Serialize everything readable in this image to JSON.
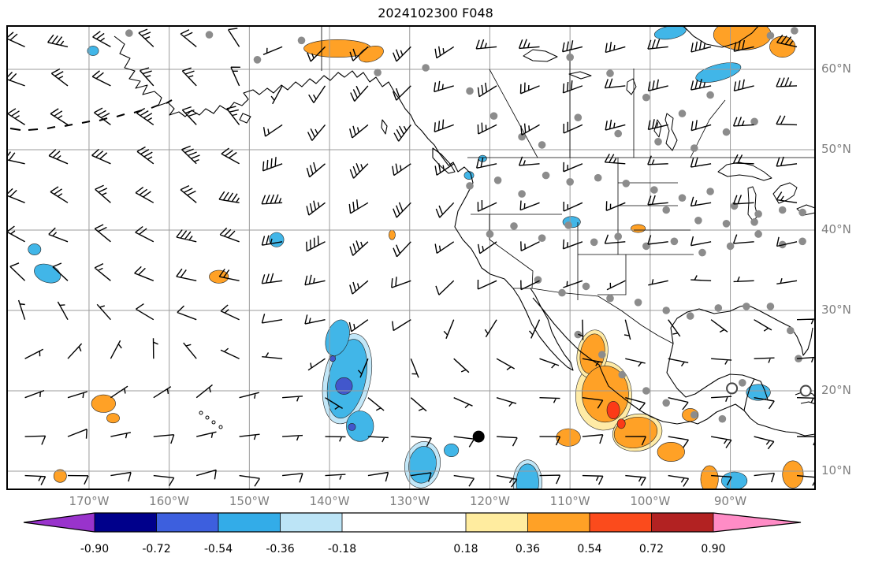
{
  "title": "2024102300 F048",
  "axes": {
    "lon_labels": [
      "170°W",
      "160°W",
      "150°W",
      "140°W",
      "130°W",
      "120°W",
      "110°W",
      "100°W",
      "90°W"
    ],
    "lat_labels": [
      "60°N",
      "50°N",
      "40°N",
      "30°N",
      "20°N",
      "10°N"
    ],
    "label_color": "#7f7f7f"
  },
  "colorbar": {
    "tick_labels": [
      "-0.90",
      "-0.72",
      "-0.54",
      "-0.36",
      "-0.18",
      "0.18",
      "0.36",
      "0.54",
      "0.72",
      "0.90"
    ],
    "colors": [
      "#9933CC",
      "#00008B",
      "#3D5FDE",
      "#33ACE8",
      "#BCE4F6",
      "#FFFFFF",
      "#FFEC9F",
      "#FFA126",
      "#FB4B1C",
      "#B22222",
      "#FF8CC6"
    ]
  },
  "palette": {
    "shade_cyan": "#41B6E8",
    "shade_lightcyan": "#C2E7F8",
    "shade_blue": "#4257CC",
    "shade_yellow": "#FFEBA6",
    "shade_orange": "#FFA126",
    "shade_red": "#FC3A17",
    "station_dot": "#8C8C8C",
    "gridline": "#9B9B9B",
    "coast": "#000000",
    "barb": "#000000"
  },
  "chart_data": {
    "type": "heatmap",
    "subtype": "wind-barb weather map with shaded anomaly contours and station dots",
    "title": "2024102300 F048",
    "x_ticks_lon_w": [
      170,
      160,
      150,
      140,
      130,
      120,
      110,
      100,
      90
    ],
    "y_ticks_lat_n": [
      60,
      50,
      40,
      30,
      20,
      10
    ],
    "lon_w_range": [
      180.3,
      79.4
    ],
    "lat_n_range": [
      7.6,
      65.5
    ],
    "colorbar_levels": [
      -0.9,
      -0.72,
      -0.54,
      -0.36,
      -0.18,
      0.18,
      0.36,
      0.54,
      0.72,
      0.9
    ],
    "shaded_regions": [
      {
        "lon": 137.8,
        "lat": 21.5,
        "rx": 2.9,
        "ry": 5.7,
        "rot": 12,
        "c": "lightcyan"
      },
      {
        "lon": 128.4,
        "lat": 10.8,
        "rx": 2.2,
        "ry": 2.9,
        "rot": 10,
        "c": "lightcyan"
      },
      {
        "lon": 115.3,
        "lat": 8.6,
        "rx": 1.8,
        "ry": 2.8,
        "rot": 0,
        "c": "lightcyan"
      },
      {
        "lon": 105.8,
        "lat": 19.4,
        "rx": 3.5,
        "ry": 4.3,
        "rot": 0,
        "c": "yellow"
      },
      {
        "lon": 107.2,
        "lat": 24.6,
        "rx": 1.9,
        "ry": 3.0,
        "rot": 10,
        "c": "yellow"
      },
      {
        "lon": 101.6,
        "lat": 14.8,
        "rx": 3.1,
        "ry": 2.3,
        "rot": -10,
        "c": "yellow"
      },
      {
        "lon": 139.0,
        "lat": 62.6,
        "rx": 4.2,
        "ry": 1.1,
        "rot": 0,
        "c": "orange"
      },
      {
        "lon": 134.8,
        "lat": 61.9,
        "rx": 1.6,
        "ry": 0.9,
        "rot": -20,
        "c": "orange"
      },
      {
        "lon": 88.5,
        "lat": 64.3,
        "rx": 3.6,
        "ry": 1.9,
        "rot": 0,
        "c": "orange"
      },
      {
        "lon": 83.5,
        "lat": 62.8,
        "rx": 1.6,
        "ry": 1.3,
        "rot": 0,
        "c": "orange"
      },
      {
        "lon": 97.5,
        "lat": 64.6,
        "rx": 2.0,
        "ry": 0.8,
        "rot": -10,
        "c": "cyan"
      },
      {
        "lon": 91.5,
        "lat": 59.6,
        "rx": 2.9,
        "ry": 1.0,
        "rot": -15,
        "c": "cyan"
      },
      {
        "lon": 169.5,
        "lat": 62.3,
        "rx": 0.7,
        "ry": 0.6,
        "rot": 0,
        "c": "cyan"
      },
      {
        "lon": 176.8,
        "lat": 37.6,
        "rx": 0.8,
        "ry": 0.7,
        "rot": 0,
        "c": "cyan"
      },
      {
        "lon": 175.2,
        "lat": 34.6,
        "rx": 1.7,
        "ry": 1.1,
        "rot": 20,
        "c": "cyan"
      },
      {
        "lon": 153.8,
        "lat": 34.2,
        "rx": 1.2,
        "ry": 0.8,
        "rot": 0,
        "c": "orange"
      },
      {
        "lon": 146.6,
        "lat": 38.8,
        "rx": 0.9,
        "ry": 0.9,
        "rot": 0,
        "c": "cyan"
      },
      {
        "lon": 137.8,
        "lat": 21.5,
        "rx": 2.3,
        "ry": 5.0,
        "rot": 12,
        "c": "cyan"
      },
      {
        "lon": 139.0,
        "lat": 26.6,
        "rx": 1.4,
        "ry": 2.3,
        "rot": 18,
        "c": "cyan"
      },
      {
        "lon": 136.2,
        "lat": 15.6,
        "rx": 1.7,
        "ry": 1.9,
        "rot": 0,
        "c": "cyan"
      },
      {
        "lon": 128.4,
        "lat": 10.8,
        "rx": 1.7,
        "ry": 2.3,
        "rot": 10,
        "c": "cyan"
      },
      {
        "lon": 124.8,
        "lat": 12.6,
        "rx": 0.9,
        "ry": 0.8,
        "rot": 0,
        "c": "cyan"
      },
      {
        "lon": 115.3,
        "lat": 8.6,
        "rx": 1.4,
        "ry": 2.3,
        "rot": 0,
        "c": "cyan"
      },
      {
        "lon": 107.2,
        "lat": 24.6,
        "rx": 1.5,
        "ry": 2.5,
        "rot": 10,
        "c": "orange"
      },
      {
        "lon": 105.6,
        "lat": 19.6,
        "rx": 2.9,
        "ry": 3.5,
        "rot": 0,
        "c": "orange"
      },
      {
        "lon": 101.8,
        "lat": 14.8,
        "rx": 2.7,
        "ry": 1.9,
        "rot": -10,
        "c": "orange"
      },
      {
        "lon": 110.2,
        "lat": 14.2,
        "rx": 1.5,
        "ry": 1.1,
        "rot": 0,
        "c": "orange"
      },
      {
        "lon": 97.4,
        "lat": 12.4,
        "rx": 1.7,
        "ry": 1.2,
        "rot": 0,
        "c": "orange"
      },
      {
        "lon": 95.0,
        "lat": 17.0,
        "rx": 1.0,
        "ry": 0.8,
        "rot": 0,
        "c": "orange"
      },
      {
        "lon": 92.6,
        "lat": 9.0,
        "rx": 1.1,
        "ry": 1.7,
        "rot": 0,
        "c": "orange"
      },
      {
        "lon": 82.2,
        "lat": 9.6,
        "rx": 1.3,
        "ry": 1.7,
        "rot": 0,
        "c": "orange"
      },
      {
        "lon": 89.5,
        "lat": 8.8,
        "rx": 1.6,
        "ry": 1.1,
        "rot": 0,
        "c": "cyan"
      },
      {
        "lon": 86.5,
        "lat": 19.8,
        "rx": 1.5,
        "ry": 1.0,
        "rot": 0,
        "c": "cyan"
      },
      {
        "lon": 168.2,
        "lat": 18.4,
        "rx": 1.5,
        "ry": 1.1,
        "rot": 0,
        "c": "orange"
      },
      {
        "lon": 167.0,
        "lat": 16.6,
        "rx": 0.8,
        "ry": 0.6,
        "rot": 0,
        "c": "orange"
      },
      {
        "lon": 173.6,
        "lat": 9.4,
        "rx": 0.8,
        "ry": 0.8,
        "rot": 0,
        "c": "orange"
      },
      {
        "lon": 101.5,
        "lat": 40.2,
        "rx": 0.9,
        "ry": 0.5,
        "rot": 0,
        "c": "orange"
      },
      {
        "lon": 109.8,
        "lat": 41.0,
        "rx": 1.1,
        "ry": 0.7,
        "rot": 0,
        "c": "cyan"
      },
      {
        "lon": 122.6,
        "lat": 46.8,
        "rx": 0.6,
        "ry": 0.5,
        "rot": 0,
        "c": "cyan"
      },
      {
        "lon": 120.9,
        "lat": 48.9,
        "rx": 0.5,
        "ry": 0.4,
        "rot": 0,
        "c": "cyan"
      },
      {
        "lon": 132.2,
        "lat": 39.4,
        "rx": 0.4,
        "ry": 0.6,
        "rot": 0,
        "c": "orange"
      },
      {
        "lon": 138.2,
        "lat": 20.6,
        "rx": 1.05,
        "ry": 1.05,
        "rot": 0,
        "c": "blue"
      },
      {
        "lon": 137.2,
        "lat": 15.5,
        "rx": 0.45,
        "ry": 0.45,
        "rot": 0,
        "c": "blue"
      },
      {
        "lon": 139.6,
        "lat": 24.0,
        "rx": 0.35,
        "ry": 0.35,
        "rot": 0,
        "c": "blue"
      },
      {
        "lon": 104.6,
        "lat": 17.6,
        "rx": 0.8,
        "ry": 1.1,
        "rot": 0,
        "c": "red"
      },
      {
        "lon": 103.6,
        "lat": 15.9,
        "rx": 0.5,
        "ry": 0.6,
        "rot": 0,
        "c": "red"
      }
    ],
    "wind_field": {
      "grid": {
        "lon_w_start": 178,
        "lon_step_deg": 5.35,
        "cols": 19,
        "lat_n_start": 62.8,
        "lat_step_deg": 4.85,
        "rows": 12
      },
      "units": "knots",
      "pattern": "cyclonic circulation centered near 147W 51N; westerlies across midlatitudes increasing poleward; easterly trades south of 24N; speeds 5-60 kt",
      "vortex": {
        "lon_w": 147,
        "lat_n": 51,
        "max_kt": 26,
        "radius_deg": 9
      },
      "jitter": {
        "seed": 7,
        "dir_deg": 14,
        "speed_pct": 25
      }
    },
    "station_dots": [
      [
        165,
        64.5
      ],
      [
        155,
        64.3
      ],
      [
        149,
        61.2
      ],
      [
        143.5,
        63.6
      ],
      [
        134,
        59.6
      ],
      [
        128,
        60.2
      ],
      [
        122.5,
        57.3
      ],
      [
        119.5,
        54.2
      ],
      [
        116,
        51.6
      ],
      [
        113.5,
        50.6
      ],
      [
        110,
        61.5
      ],
      [
        105,
        59.5
      ],
      [
        100.5,
        56.5
      ],
      [
        96,
        54.5
      ],
      [
        92.5,
        56.8
      ],
      [
        109,
        54
      ],
      [
        104,
        52
      ],
      [
        99,
        51
      ],
      [
        94.5,
        50.2
      ],
      [
        90.5,
        52.2
      ],
      [
        87,
        53.5
      ],
      [
        85,
        64.2
      ],
      [
        82,
        64.8
      ],
      [
        122.5,
        45.5
      ],
      [
        119,
        46.2
      ],
      [
        116,
        44.5
      ],
      [
        113,
        46.8
      ],
      [
        110,
        46
      ],
      [
        106.5,
        46.5
      ],
      [
        103,
        45.8
      ],
      [
        99.5,
        45
      ],
      [
        96,
        44
      ],
      [
        92.5,
        44.8
      ],
      [
        89.5,
        43
      ],
      [
        86.5,
        42
      ],
      [
        83.5,
        42.5
      ],
      [
        81,
        42.2
      ],
      [
        120,
        39.5
      ],
      [
        117,
        40.5
      ],
      [
        113.5,
        39
      ],
      [
        110.2,
        40.6
      ],
      [
        107,
        38.5
      ],
      [
        104,
        39.2
      ],
      [
        100.5,
        38
      ],
      [
        97,
        38.6
      ],
      [
        93.5,
        37.2
      ],
      [
        90,
        38
      ],
      [
        86.5,
        39.5
      ],
      [
        83.5,
        38.2
      ],
      [
        81,
        38.6
      ],
      [
        98,
        42.5
      ],
      [
        94,
        41.2
      ],
      [
        90.5,
        40.8
      ],
      [
        87,
        41
      ],
      [
        114,
        33.8
      ],
      [
        111,
        32.2
      ],
      [
        108,
        33
      ],
      [
        105,
        31.5
      ],
      [
        101.5,
        31
      ],
      [
        98,
        30
      ],
      [
        95,
        29.3
      ],
      [
        91.5,
        30.3
      ],
      [
        88,
        30.5
      ],
      [
        85,
        30.5
      ],
      [
        82.5,
        27.5
      ],
      [
        109,
        27
      ],
      [
        106,
        24.5
      ],
      [
        103.5,
        22
      ],
      [
        100.5,
        20
      ],
      [
        98,
        18.5
      ],
      [
        94.5,
        17
      ],
      [
        91,
        16.5
      ],
      [
        88.5,
        21
      ],
      [
        81.5,
        24
      ]
    ],
    "markers": [
      {
        "type": "storm-center",
        "style": "filled-black",
        "lon": 121.4,
        "lat": 14.3
      },
      {
        "type": "storm-center",
        "style": "open-circle",
        "lon": 89.8,
        "lat": 20.3
      },
      {
        "type": "storm-center",
        "style": "open-circle",
        "lon": 80.6,
        "lat": 20.0
      }
    ]
  }
}
